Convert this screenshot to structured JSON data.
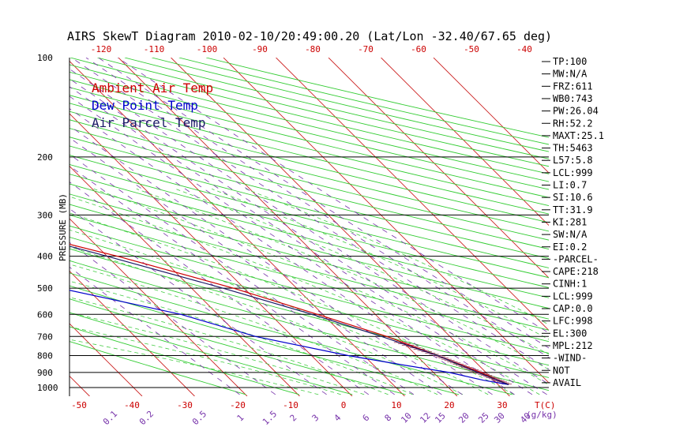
{
  "chart_data": {
    "type": "line",
    "title": "AIRS SkewT Diagram 2010-02-10/20:49:00.20 (Lat/Lon -32.40/67.65 deg)",
    "ylabel": "PRESSURE (MB)",
    "y_scale": "log",
    "ylim": [
      1050,
      100
    ],
    "pressure_ticks": [
      100,
      200,
      300,
      400,
      500,
      600,
      700,
      800,
      900,
      1000
    ],
    "top_temp_ticks": [
      -120,
      -110,
      -100,
      -90,
      -80,
      -70,
      -60,
      -50,
      -40
    ],
    "bottom_temp_ticks": [
      -50,
      -40,
      -30,
      -20,
      -10,
      0,
      10,
      20,
      30
    ],
    "bottom_temp_unit": "T(C)",
    "mixing_ratio_ticks": [
      "0.1",
      "0.2",
      "0.5",
      "1",
      "1.5",
      "2",
      "3",
      "4",
      "6",
      "8",
      "10",
      "12",
      "15",
      "20",
      "25",
      "30",
      "40"
    ],
    "mixing_ratio_unit": "(g/kg)",
    "legend": [
      "Ambient Air Temp",
      "Dew Point Temp",
      "Air Parcel Temp"
    ],
    "legend_colors": [
      "#cc0000",
      "#0000cc",
      "#1a1a66"
    ],
    "series": [
      {
        "name": "Ambient Air Temp",
        "color": "#cc0000",
        "points": [
          [
            100,
            -64
          ],
          [
            140,
            -75
          ],
          [
            170,
            -80
          ],
          [
            200,
            -83
          ],
          [
            250,
            -76
          ],
          [
            300,
            -63
          ],
          [
            350,
            -49
          ],
          [
            400,
            -38
          ],
          [
            500,
            -22
          ],
          [
            600,
            -11
          ],
          [
            700,
            -2
          ],
          [
            800,
            4
          ],
          [
            900,
            9
          ],
          [
            980,
            12
          ]
        ]
      },
      {
        "name": "Dew Point Temp",
        "color": "#0000cc",
        "points": [
          [
            100,
            -98
          ],
          [
            140,
            -108
          ],
          [
            150,
            -112
          ],
          [
            200,
            -118
          ],
          [
            250,
            -121
          ],
          [
            300,
            -125
          ],
          [
            350,
            -107
          ],
          [
            400,
            -90
          ],
          [
            500,
            -55
          ],
          [
            600,
            -37
          ],
          [
            700,
            -27
          ],
          [
            800,
            -13
          ],
          [
            850,
            -5
          ],
          [
            900,
            3
          ],
          [
            950,
            8
          ],
          [
            980,
            12
          ]
        ]
      },
      {
        "name": "Air Parcel Temp",
        "color": "#1a1a66",
        "points": [
          [
            100,
            -125
          ],
          [
            150,
            -105
          ],
          [
            200,
            -92
          ],
          [
            250,
            -75
          ],
          [
            300,
            -62
          ],
          [
            350,
            -50
          ],
          [
            400,
            -40
          ],
          [
            500,
            -24
          ],
          [
            600,
            -12
          ],
          [
            700,
            -3
          ],
          [
            800,
            4
          ],
          [
            900,
            8.5
          ],
          [
            980,
            12
          ]
        ]
      }
    ],
    "indices": [
      "TP:100",
      "MW:N/A",
      "FRZ:611",
      "WB0:743",
      "PW:26.04",
      "RH:52.2",
      "MAXT:25.1",
      "TH:5463",
      "L57:5.8",
      "LCL:999",
      "LI:0.7",
      "SI:10.6",
      "TT:31.9",
      "KI:281",
      "SW:N/A",
      "EI:0.2",
      "-PARCEL-",
      "CAPE:218",
      "CINH:1",
      "LCL:999",
      "CAP:0.0",
      "LFC:998",
      "EL:300",
      "MPL:212",
      "-WIND-",
      "NOT",
      "AVAIL"
    ]
  }
}
